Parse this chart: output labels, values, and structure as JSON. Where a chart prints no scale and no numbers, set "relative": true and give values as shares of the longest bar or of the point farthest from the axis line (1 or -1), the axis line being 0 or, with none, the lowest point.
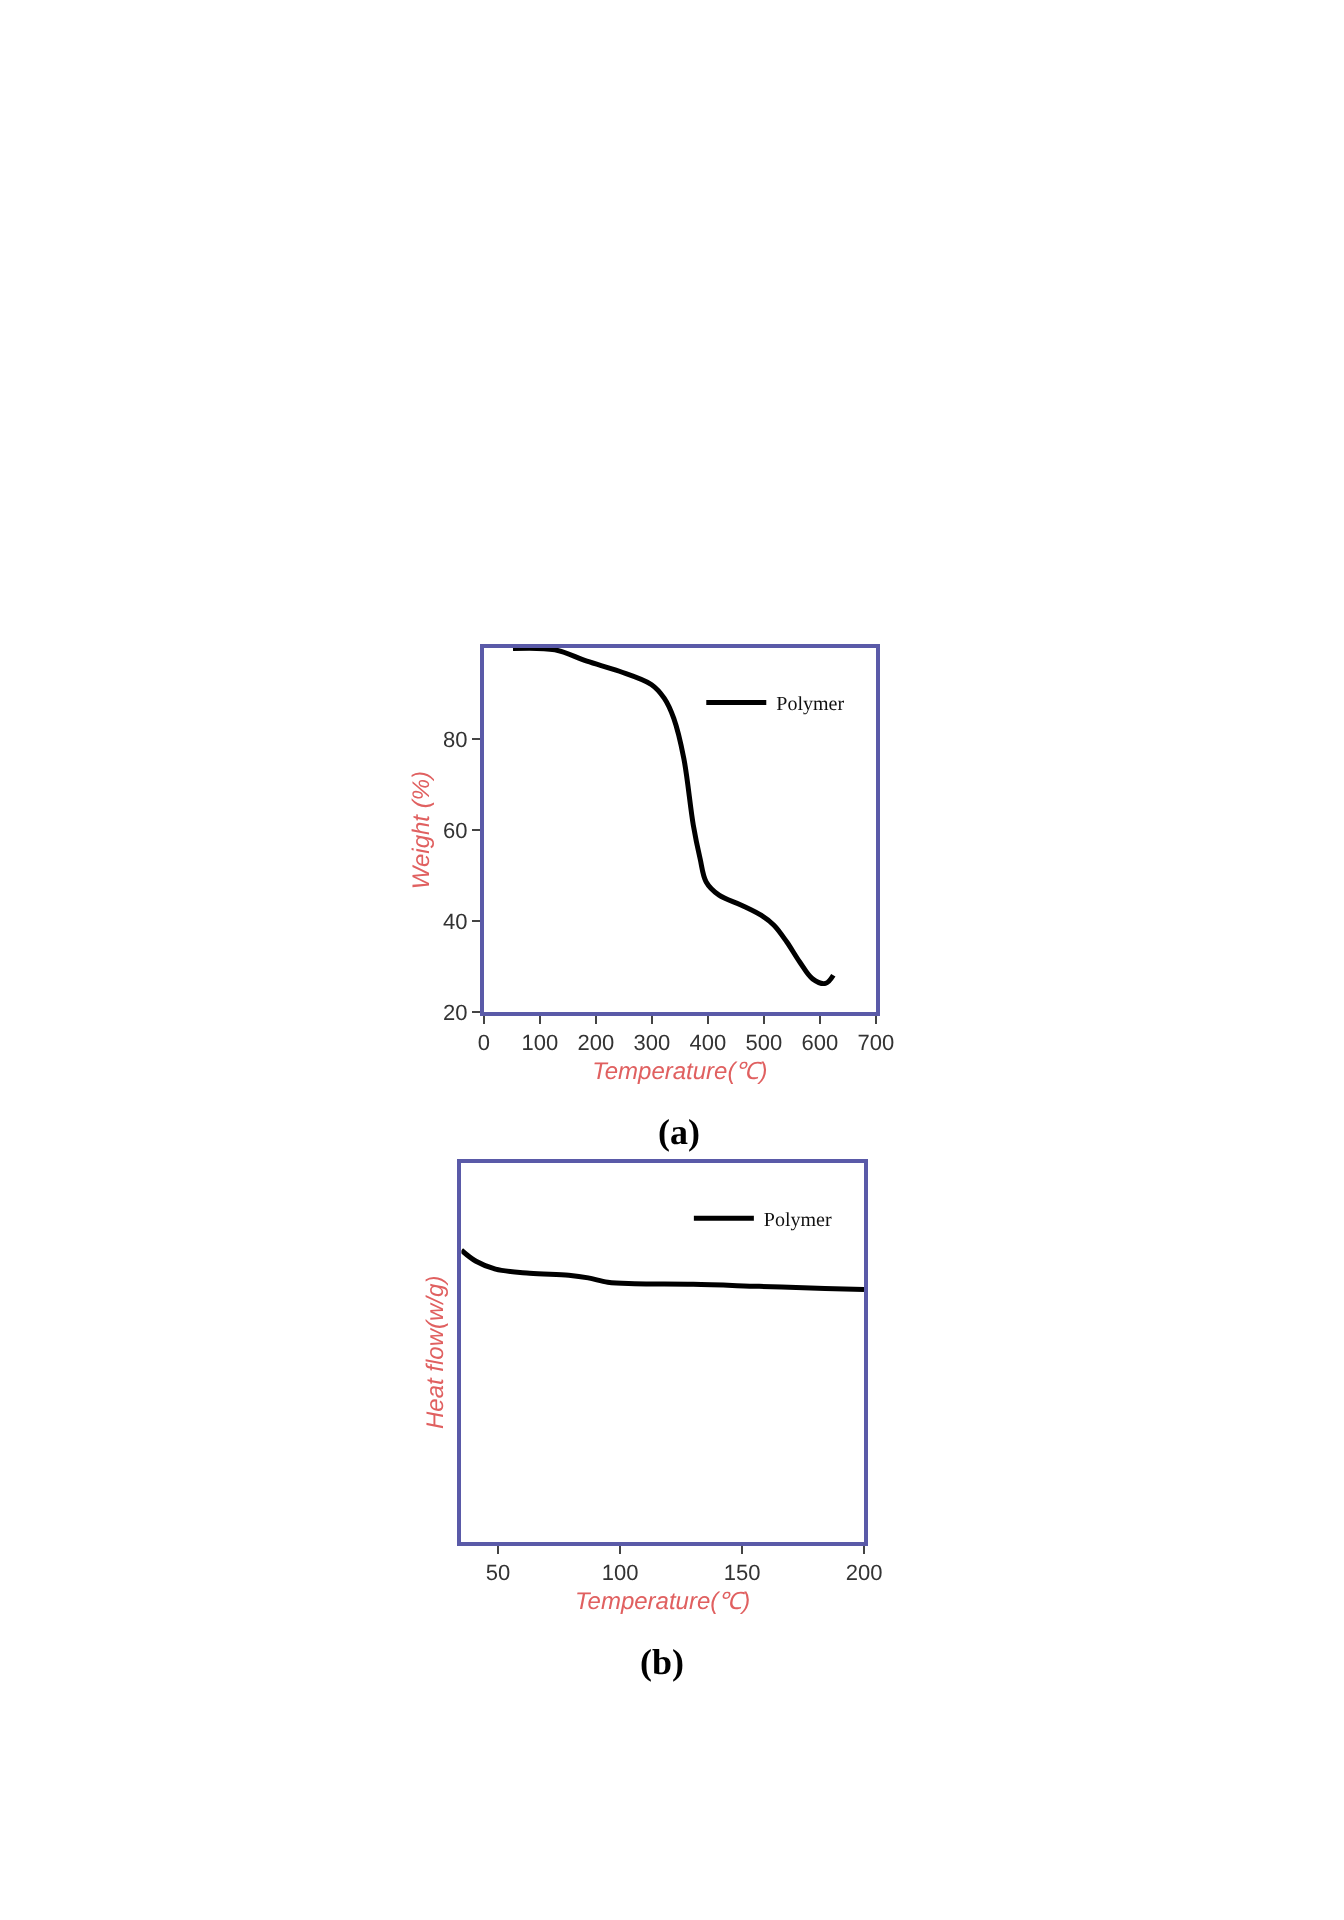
{
  "chart_data": [
    {
      "type": "line",
      "title": "(a)",
      "xlabel": "Temperature(℃)",
      "ylabel": "Weight (%)",
      "xlim": [
        0,
        700
      ],
      "xticks": [
        0,
        100,
        200,
        300,
        400,
        500,
        600,
        700
      ],
      "ylim": [
        20,
        100
      ],
      "yticks": [
        20,
        40,
        60,
        80
      ],
      "legend": "top right",
      "series": [
        {
          "name": "Polymer",
          "color": "#000000",
          "x": [
            52,
            127,
            184,
            242,
            299,
            322,
            339,
            357,
            374,
            386,
            397,
            420,
            460,
            495,
            518,
            541,
            564,
            587,
            610,
            624
          ],
          "values": [
            99.9,
            99.6,
            97.1,
            94.9,
            92,
            89,
            84.6,
            75.8,
            61.1,
            53.8,
            48.6,
            45.7,
            43.5,
            41.3,
            39.1,
            35.4,
            31,
            27.3,
            26.3,
            28.1
          ]
        }
      ]
    },
    {
      "type": "line",
      "title": "(b)",
      "xlabel": "Temperature(℃)",
      "ylabel": "Heat flow(w/g)",
      "xlim": [
        35,
        200
      ],
      "xticks": [
        50,
        100,
        150,
        200
      ],
      "relative": true,
      "legend": "top right",
      "series": [
        {
          "name": "Polymer",
          "color": "#000000",
          "x": [
            35,
            41,
            49,
            63,
            79,
            87,
            95,
            106,
            130,
            157,
            184,
            200
          ],
          "values": [
            1.0,
            0.962,
            0.935,
            0.921,
            0.914,
            0.905,
            0.89,
            0.885,
            0.883,
            0.876,
            0.869,
            0.865
          ]
        }
      ]
    }
  ]
}
